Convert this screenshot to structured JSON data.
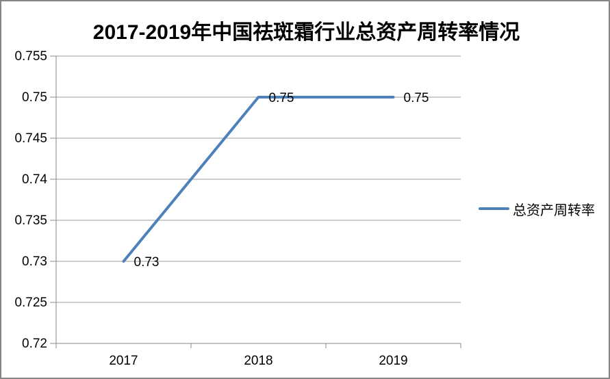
{
  "frame": {
    "background": "#ffffff",
    "border_color": "#858585"
  },
  "chart_data": {
    "type": "line",
    "title": "2017-2019年中国祛斑霜行业总资产周转率情况",
    "categories": [
      "2017",
      "2018",
      "2019"
    ],
    "series": [
      {
        "name": "总资产周转率",
        "values": [
          0.73,
          0.75,
          0.75
        ],
        "color": "#4E80BA"
      }
    ],
    "data_labels": [
      "0.73",
      "0.75",
      "0.75"
    ],
    "ylim": [
      0.72,
      0.755
    ],
    "ytick_step": 0.005,
    "ytick_labels": [
      "0.72",
      "0.725",
      "0.73",
      "0.735",
      "0.74",
      "0.745",
      "0.75",
      "0.755"
    ],
    "xlabel": "",
    "ylabel": "",
    "grid": true,
    "legend_position": "right",
    "gridline_color": "#9B9B9B",
    "axis_color": "#8A8A8A",
    "text_color": "#000000"
  }
}
